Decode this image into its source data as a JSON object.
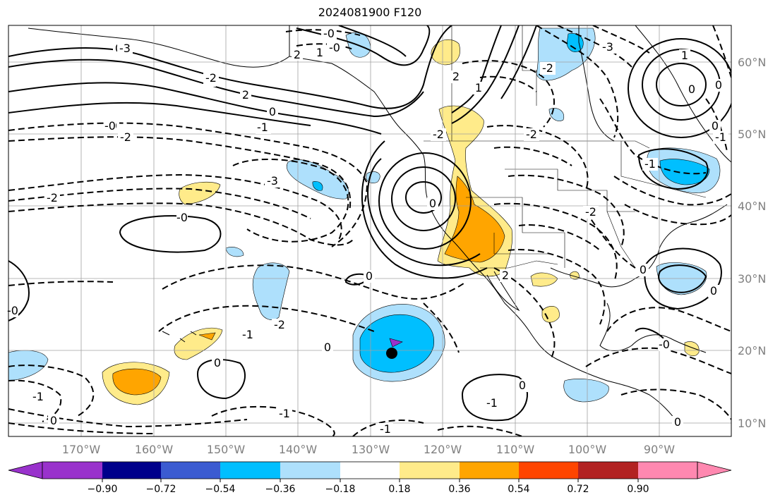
{
  "title": "2024081900 F120",
  "lon_labels": [
    "170°W",
    "160°W",
    "150°W",
    "140°W",
    "130°W",
    "120°W",
    "110°W",
    "100°W",
    "90°W"
  ],
  "lat_labels": [
    "60°N",
    "50°N",
    "40°N",
    "30°N",
    "20°N",
    "10°N"
  ],
  "colorbar": {
    "ticks": [
      "−0.90",
      "−0.72",
      "−0.54",
      "−0.36",
      "−0.18",
      "0.18",
      "0.36",
      "0.54",
      "0.72",
      "0.90"
    ],
    "colors": [
      "#9932cc",
      "#00008b",
      "#3b5bd1",
      "#00bfff",
      "#aee0fc",
      "#ffffff",
      "#ffeb8a",
      "#ffa500",
      "#ff4500",
      "#b22222",
      "#ff88b0"
    ]
  },
  "contour_labels": [
    "-0",
    "-0",
    "2",
    "1",
    "0",
    "2",
    "0",
    "-1",
    "-2",
    "-0",
    "-2",
    "-3",
    "-2",
    "-0",
    "2",
    "1",
    "-2",
    "-3",
    "-2",
    "-2",
    "1",
    "0",
    "-1",
    "0",
    "0",
    "0",
    "0",
    "-2",
    "-1",
    "-0",
    "-1",
    "0",
    "-1",
    "0",
    "-1",
    "0",
    "2",
    "0",
    "-2",
    "-1",
    "0",
    "0",
    "-1",
    "-0",
    "0",
    "-0",
    "2",
    "-3"
  ],
  "marker": "black-dot"
}
